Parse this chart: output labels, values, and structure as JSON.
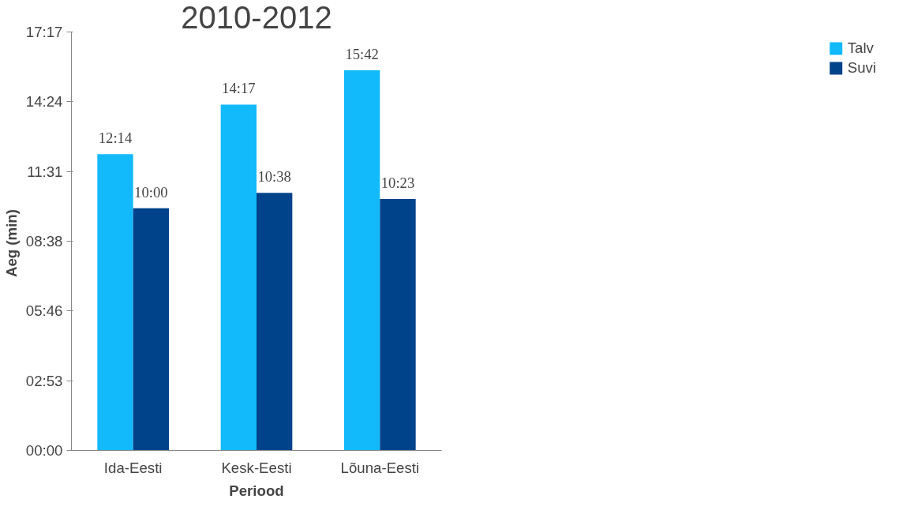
{
  "chart_data": {
    "type": "bar",
    "title": "2010-2012",
    "xlabel": "Periood",
    "ylabel": "Aeg  (min)",
    "categories": [
      "Ida-Eesti",
      "Kesk-Eesti",
      "Lõuna-Eesti"
    ],
    "series": [
      {
        "name": "Talv",
        "color": "#12b9fb",
        "values": [
          12.2333,
          14.2833,
          15.7
        ],
        "value_labels": [
          "12:14",
          "14:17",
          "15:42"
        ]
      },
      {
        "name": "Suvi",
        "color": "#00438a",
        "values": [
          10.0,
          10.6333,
          10.3833
        ],
        "value_labels": [
          "10:00",
          "10:38",
          "10:23"
        ]
      }
    ],
    "ylim": [
      0,
      17.28
    ],
    "yticks": [
      {
        "value": 0,
        "label": "00:00"
      },
      {
        "value": 2.88,
        "label": "02:53"
      },
      {
        "value": 5.76,
        "label": "05:46"
      },
      {
        "value": 8.64,
        "label": "08:38"
      },
      {
        "value": 11.52,
        "label": "11:31"
      },
      {
        "value": 14.4,
        "label": "14:24"
      },
      {
        "value": 17.28,
        "label": "17:17"
      }
    ],
    "grid": false,
    "legend": "right"
  }
}
